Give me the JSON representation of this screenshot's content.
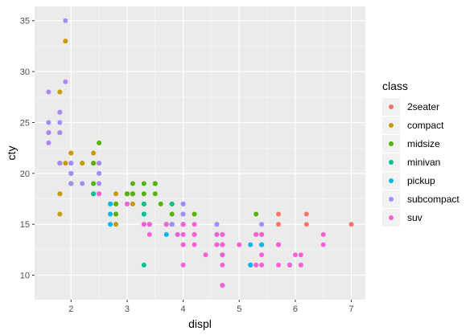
{
  "chart_data": {
    "type": "scatter",
    "xlabel": "displ",
    "ylabel": "cty",
    "xlim": [
      1.35,
      7.25
    ],
    "ylim": [
      7.6,
      36.4
    ],
    "x_ticks": [
      2,
      3,
      4,
      5,
      6,
      7
    ],
    "y_ticks": [
      10,
      15,
      20,
      25,
      30,
      35
    ],
    "grid": true,
    "legend_title": "class",
    "legend_position": "right",
    "series": [
      {
        "name": "2seater",
        "color": "#F8766D",
        "points": [
          [
            5.7,
            16
          ],
          [
            5.7,
            15
          ],
          [
            6.2,
            16
          ],
          [
            6.2,
            15
          ],
          [
            7.0,
            15
          ]
        ]
      },
      {
        "name": "compact",
        "color": "#C49A00",
        "points": [
          [
            1.8,
            18
          ],
          [
            1.8,
            21
          ],
          [
            2.0,
            20
          ],
          [
            2.0,
            21
          ],
          [
            2.8,
            16
          ],
          [
            2.8,
            18
          ],
          [
            3.1,
            18
          ],
          [
            1.8,
            18
          ],
          [
            1.8,
            16
          ],
          [
            2.0,
            20
          ],
          [
            2.0,
            19
          ],
          [
            2.8,
            15
          ],
          [
            2.8,
            17
          ],
          [
            3.1,
            17
          ],
          [
            1.8,
            21
          ],
          [
            1.8,
            28
          ],
          [
            2.0,
            22
          ],
          [
            2.4,
            21
          ],
          [
            2.4,
            21
          ],
          [
            2.5,
            21
          ],
          [
            2.5,
            18
          ],
          [
            2.2,
            21
          ],
          [
            2.2,
            21
          ],
          [
            2.4,
            19
          ],
          [
            2.4,
            22
          ],
          [
            3.0,
            18
          ],
          [
            3.0,
            18
          ],
          [
            3.3,
            17
          ],
          [
            1.9,
            33
          ],
          [
            1.9,
            21
          ],
          [
            2.0,
            19
          ],
          [
            2.0,
            22
          ],
          [
            2.5,
            21
          ],
          [
            1.8,
            24
          ],
          [
            1.8,
            26
          ],
          [
            1.8,
            24
          ]
        ]
      },
      {
        "name": "midsize",
        "color": "#53B400",
        "points": [
          [
            2.4,
            18
          ],
          [
            2.5,
            23
          ],
          [
            3.0,
            18
          ],
          [
            3.1,
            19
          ],
          [
            3.5,
            18
          ],
          [
            3.5,
            19
          ],
          [
            3.8,
            16
          ],
          [
            2.4,
            19
          ],
          [
            3.1,
            18
          ],
          [
            3.5,
            19
          ],
          [
            3.3,
            17
          ],
          [
            3.3,
            18
          ],
          [
            3.5,
            19
          ],
          [
            3.0,
            18
          ],
          [
            3.3,
            19
          ],
          [
            3.6,
            17
          ],
          [
            3.8,
            17
          ],
          [
            4.2,
            16
          ],
          [
            3.1,
            18
          ],
          [
            2.0,
            21
          ],
          [
            2.0,
            19
          ],
          [
            2.8,
            17
          ],
          [
            1.8,
            21
          ],
          [
            2.4,
            21
          ],
          [
            3.0,
            18
          ],
          [
            5.3,
            16
          ],
          [
            2.8,
            16
          ],
          [
            2.8,
            17
          ]
        ]
      },
      {
        "name": "minivan",
        "color": "#00C094",
        "points": [
          [
            2.4,
            18
          ],
          [
            3.0,
            17
          ],
          [
            3.3,
            16
          ],
          [
            3.3,
            16
          ],
          [
            3.3,
            17
          ],
          [
            3.8,
            15
          ],
          [
            3.8,
            15
          ],
          [
            3.8,
            17
          ],
          [
            4.0,
            16
          ],
          [
            3.3,
            11
          ],
          [
            3.3,
            15
          ]
        ]
      },
      {
        "name": "pickup",
        "color": "#00B6EB",
        "points": [
          [
            2.7,
            15
          ],
          [
            2.7,
            16
          ],
          [
            2.7,
            17
          ],
          [
            3.4,
            15
          ],
          [
            3.4,
            15
          ],
          [
            4.0,
            15
          ],
          [
            4.7,
            12
          ],
          [
            4.7,
            9
          ],
          [
            4.7,
            13
          ],
          [
            5.2,
            11
          ],
          [
            5.9,
            11
          ],
          [
            4.7,
            12
          ],
          [
            5.7,
            13
          ],
          [
            3.9,
            14
          ],
          [
            3.9,
            14
          ],
          [
            4.2,
            14
          ],
          [
            4.7,
            13
          ],
          [
            5.2,
            13
          ],
          [
            5.2,
            11
          ],
          [
            5.9,
            11
          ],
          [
            2.7,
            17
          ],
          [
            3.7,
            14
          ],
          [
            3.7,
            15
          ],
          [
            4.0,
            15
          ],
          [
            4.7,
            14
          ],
          [
            5.4,
            13
          ],
          [
            4.6,
            13
          ],
          [
            4.6,
            15
          ],
          [
            4.0,
            17
          ],
          [
            4.7,
            14
          ],
          [
            5.4,
            13
          ],
          [
            3.7,
            15
          ],
          [
            4.0,
            15
          ],
          [
            4.6,
            14
          ]
        ]
      },
      {
        "name": "subcompact",
        "color": "#A58AFF",
        "points": [
          [
            3.8,
            15
          ],
          [
            3.8,
            15
          ],
          [
            4.0,
            17
          ],
          [
            4.0,
            16
          ],
          [
            4.6,
            15
          ],
          [
            4.6,
            15
          ],
          [
            5.4,
            14
          ],
          [
            5.4,
            15
          ],
          [
            1.6,
            28
          ],
          [
            1.6,
            24
          ],
          [
            1.6,
            25
          ],
          [
            1.6,
            23
          ],
          [
            1.6,
            24
          ],
          [
            1.8,
            26
          ],
          [
            1.8,
            25
          ],
          [
            1.8,
            24
          ],
          [
            2.0,
            21
          ],
          [
            2.0,
            19
          ],
          [
            2.5,
            20
          ],
          [
            2.5,
            21
          ],
          [
            1.9,
            35
          ],
          [
            1.9,
            29
          ],
          [
            2.0,
            21
          ],
          [
            2.0,
            20
          ],
          [
            2.5,
            20
          ],
          [
            2.5,
            19
          ],
          [
            2.2,
            19
          ],
          [
            1.8,
            21
          ]
        ]
      },
      {
        "name": "suv",
        "color": "#FB61D7",
        "points": [
          [
            5.3,
            14
          ],
          [
            5.3,
            11
          ],
          [
            5.3,
            14
          ],
          [
            5.7,
            13
          ],
          [
            6.5,
            14
          ],
          [
            6.5,
            13
          ],
          [
            4.6,
            13
          ],
          [
            4.0,
            11
          ],
          [
            4.2,
            14
          ],
          [
            4.4,
            12
          ],
          [
            4.6,
            13
          ],
          [
            5.4,
            11
          ],
          [
            5.4,
            11
          ],
          [
            3.0,
            17
          ],
          [
            3.7,
            15
          ],
          [
            4.0,
            11
          ],
          [
            4.7,
            13
          ],
          [
            4.7,
            14
          ],
          [
            5.7,
            11
          ],
          [
            6.1,
            11
          ],
          [
            4.0,
            14
          ],
          [
            4.0,
            15
          ],
          [
            4.6,
            14
          ],
          [
            5.0,
            13
          ],
          [
            4.2,
            14
          ],
          [
            4.2,
            15
          ],
          [
            4.6,
            13
          ],
          [
            3.9,
            14
          ],
          [
            4.7,
            9
          ],
          [
            4.7,
            13
          ],
          [
            5.7,
            13
          ],
          [
            6.1,
            11
          ],
          [
            5.0,
            13
          ],
          [
            5.7,
            13
          ],
          [
            6.1,
            12
          ],
          [
            5.4,
            14
          ],
          [
            2.5,
            18
          ],
          [
            2.5,
            18
          ],
          [
            3.3,
            15
          ],
          [
            3.3,
            15
          ],
          [
            4.2,
            13
          ],
          [
            4.7,
            14
          ],
          [
            5.7,
            13
          ],
          [
            4.0,
            13
          ],
          [
            4.7,
            14
          ],
          [
            5.9,
            11
          ],
          [
            6.0,
            12
          ],
          [
            4.2,
            14
          ],
          [
            4.7,
            12
          ],
          [
            4.0,
            15
          ],
          [
            4.6,
            14
          ],
          [
            5.4,
            12
          ],
          [
            5.4,
            14
          ],
          [
            3.4,
            15
          ],
          [
            3.4,
            14
          ],
          [
            2.5,
            18
          ],
          [
            4.0,
            13
          ],
          [
            4.7,
            11
          ],
          [
            4.7,
            9
          ],
          [
            5.3,
            11
          ],
          [
            5.3,
            14
          ]
        ]
      }
    ]
  }
}
